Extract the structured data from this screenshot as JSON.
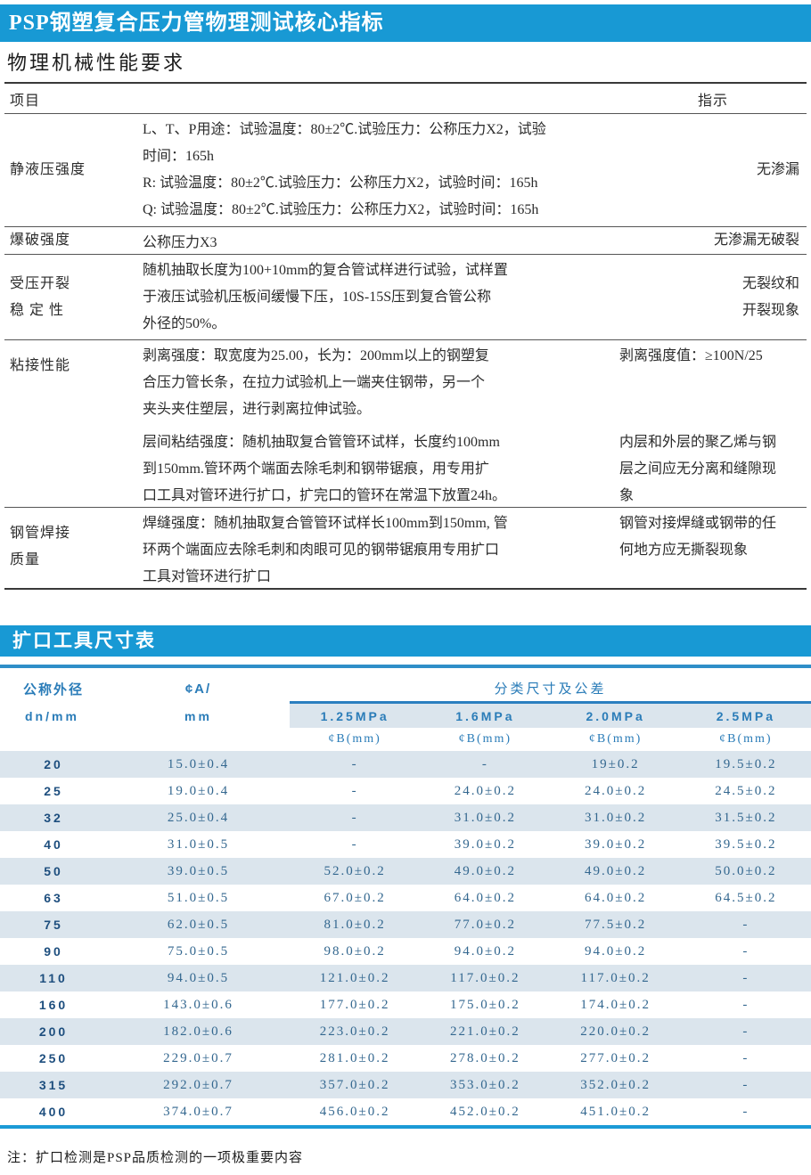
{
  "page": {
    "title_bar1": "PSP钢塑复合压力管物理测试核心指标",
    "section_heading": "物理机械性能要求",
    "title_bar2": "扩口工具尺寸表",
    "footnote": "注：扩口检测是PSP品质检测的一项极重要内容"
  },
  "colors": {
    "title_bar_blue": "#1899d4",
    "accent_line_blue": "#2e8ec8",
    "row_band_blue": "#dbe5ed",
    "table_text_blue": "#33678f"
  },
  "spec_table": {
    "col_item": "项目",
    "col_indication": "指示",
    "rows": [
      {
        "item": "静液压强度",
        "subs": [
          {
            "desc": "L、T、P用途：试验温度：80±2℃.试验压力：公称压力X2，试验\n时间：165h\nR: 试验温度：80±2℃.试验压力：公称压力X2，试验时间：165h\nQ: 试验温度：80±2℃.试验压力：公称压力X2，试验时间：165h",
            "ind": "无渗漏"
          }
        ]
      },
      {
        "item": "爆破强度",
        "subs": [
          {
            "desc": "公称压力X3",
            "ind": "无渗漏无破裂"
          }
        ]
      },
      {
        "item": "受压开裂\n稳 定 性",
        "subs": [
          {
            "desc": "随机抽取长度为100+10mm的复合管试样进行试验，试样置\n于液压试验机压板间缓慢下压，10S-15S压到复合管公称\n外径的50%。",
            "ind": "无裂纹和\n开裂现象"
          }
        ]
      },
      {
        "item": "粘接性能",
        "subs": [
          {
            "desc": "剥离强度：取宽度为25.00，长为：200mm以上的钢塑复\n合压力管长条，在拉力试验机上一端夹住钢带，另一个\n夹头夹住塑层，进行剥离拉伸试验。",
            "ind": "剥离强度值：≥100N/25"
          },
          {
            "desc": "层间粘结强度：随机抽取复合管管环试样，长度约100mm\n到150mm.管环两个端面去除毛刺和钢带锯痕，用专用扩\n口工具对管环进行扩口，扩完口的管环在常温下放置24h。",
            "ind": "内层和外层的聚乙烯与钢\n层之间应无分离和缝隙现\n象"
          }
        ]
      },
      {
        "item": "钢管焊接\n质量",
        "subs": [
          {
            "desc": "焊缝强度：随机抽取复合管管环试样长100mm到150mm, 管\n环两个端面应去除毛刺和肉眼可见的钢带锯痕用专用扩口\n工具对管环进行扩口",
            "ind": "钢管对接焊缝或钢带的任\n何地方应无撕裂现象"
          }
        ]
      }
    ]
  },
  "size_table": {
    "col1_line1": "公称外径",
    "col1_line2": "dn/mm",
    "col2_line1": "¢A/",
    "col2_line2": "mm",
    "group_header": "分类尺寸及公差",
    "pressure_classes": [
      "1.25MPa",
      "1.6MPa",
      "2.0MPa",
      "2.5MPa"
    ],
    "sub_header": "¢B(mm)",
    "rows": [
      {
        "dn": "20",
        "a": "15.0±0.4",
        "b": [
          "-",
          "-",
          "19±0.2",
          "19.5±0.2"
        ]
      },
      {
        "dn": "25",
        "a": "19.0±0.4",
        "b": [
          "-",
          "24.0±0.2",
          "24.0±0.2",
          "24.5±0.2"
        ]
      },
      {
        "dn": "32",
        "a": "25.0±0.4",
        "b": [
          "-",
          "31.0±0.2",
          "31.0±0.2",
          "31.5±0.2"
        ]
      },
      {
        "dn": "40",
        "a": "31.0±0.5",
        "b": [
          "-",
          "39.0±0.2",
          "39.0±0.2",
          "39.5±0.2"
        ]
      },
      {
        "dn": "50",
        "a": "39.0±0.5",
        "b": [
          "52.0±0.2",
          "49.0±0.2",
          "49.0±0.2",
          "50.0±0.2"
        ]
      },
      {
        "dn": "63",
        "a": "51.0±0.5",
        "b": [
          "67.0±0.2",
          "64.0±0.2",
          "64.0±0.2",
          "64.5±0.2"
        ]
      },
      {
        "dn": "75",
        "a": "62.0±0.5",
        "b": [
          "81.0±0.2",
          "77.0±0.2",
          "77.5±0.2",
          "-"
        ]
      },
      {
        "dn": "90",
        "a": "75.0±0.5",
        "b": [
          "98.0±0.2",
          "94.0±0.2",
          "94.0±0.2",
          "-"
        ]
      },
      {
        "dn": "110",
        "a": "94.0±0.5",
        "b": [
          "121.0±0.2",
          "117.0±0.2",
          "117.0±0.2",
          "-"
        ]
      },
      {
        "dn": "160",
        "a": "143.0±0.6",
        "b": [
          "177.0±0.2",
          "175.0±0.2",
          "174.0±0.2",
          "-"
        ]
      },
      {
        "dn": "200",
        "a": "182.0±0.6",
        "b": [
          "223.0±0.2",
          "221.0±0.2",
          "220.0±0.2",
          "-"
        ]
      },
      {
        "dn": "250",
        "a": "229.0±0.7",
        "b": [
          "281.0±0.2",
          "278.0±0.2",
          "277.0±0.2",
          "-"
        ]
      },
      {
        "dn": "315",
        "a": "292.0±0.7",
        "b": [
          "357.0±0.2",
          "353.0±0.2",
          "352.0±0.2",
          "-"
        ]
      },
      {
        "dn": "400",
        "a": "374.0±0.7",
        "b": [
          "456.0±0.2",
          "452.0±0.2",
          "451.0±0.2",
          "-"
        ]
      }
    ]
  }
}
